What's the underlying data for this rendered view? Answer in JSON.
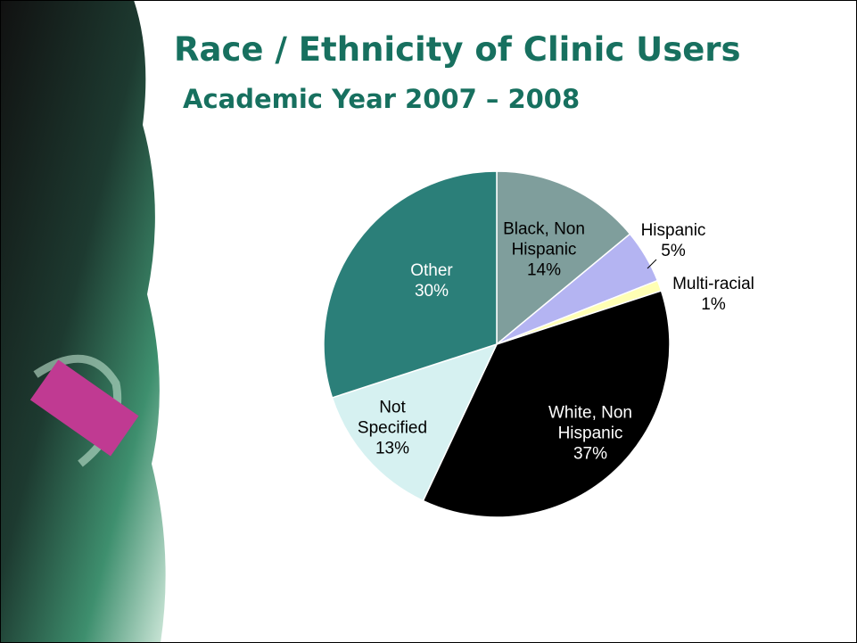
{
  "chart_data": {
    "type": "pie",
    "title": "Race / Ethnicity of Clinic Users",
    "subtitle": "Academic Year 2007 – 2008",
    "categories": [
      "Black, Non Hispanic",
      "Hispanic",
      "Multi-racial",
      "White, Non Hispanic",
      "Not Specified",
      "Other"
    ],
    "values": [
      14,
      5,
      1,
      37,
      13,
      30
    ],
    "value_labels": [
      "14%",
      "5%",
      "1%",
      "37%",
      "13%",
      "30%"
    ],
    "colors": [
      "#7f9e9c",
      "#b4b4f2",
      "#ffffb4",
      "#000000",
      "#d6f1f1",
      "#2b7f79"
    ]
  }
}
